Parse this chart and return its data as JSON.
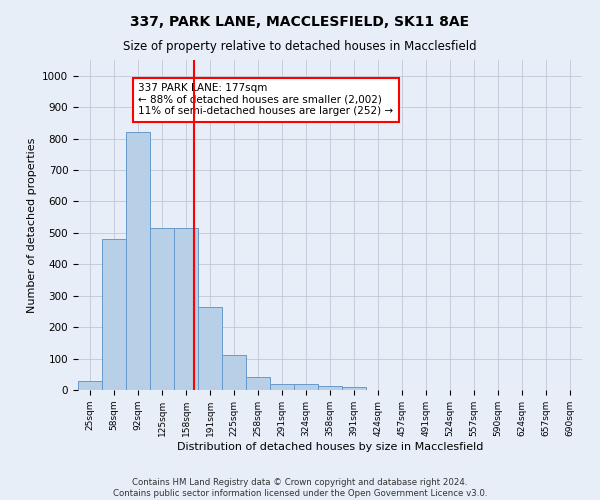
{
  "title": "337, PARK LANE, MACCLESFIELD, SK11 8AE",
  "subtitle": "Size of property relative to detached houses in Macclesfield",
  "xlabel": "Distribution of detached houses by size in Macclesfield",
  "ylabel": "Number of detached properties",
  "footnote1": "Contains HM Land Registry data © Crown copyright and database right 2024.",
  "footnote2": "Contains public sector information licensed under the Open Government Licence v3.0.",
  "bin_labels": [
    "25sqm",
    "58sqm",
    "92sqm",
    "125sqm",
    "158sqm",
    "191sqm",
    "225sqm",
    "258sqm",
    "291sqm",
    "324sqm",
    "358sqm",
    "391sqm",
    "424sqm",
    "457sqm",
    "491sqm",
    "524sqm",
    "557sqm",
    "590sqm",
    "624sqm",
    "657sqm",
    "690sqm"
  ],
  "bar_heights": [
    30,
    480,
    820,
    515,
    515,
    265,
    110,
    40,
    20,
    20,
    12,
    10,
    0,
    0,
    0,
    0,
    0,
    0,
    0,
    0,
    0
  ],
  "bar_color": "#b8cfe8",
  "bar_edgecolor": "#6699cc",
  "redline_x": 4.85,
  "annotation_text": "337 PARK LANE: 177sqm\n← 88% of detached houses are smaller (2,002)\n11% of semi-detached houses are larger (252) →",
  "annotation_box_color": "white",
  "annotation_box_edgecolor": "red",
  "redline_color": "red",
  "ylim": [
    0,
    1050
  ],
  "yticks": [
    0,
    100,
    200,
    300,
    400,
    500,
    600,
    700,
    800,
    900,
    1000
  ],
  "background_color": "#e8eef8",
  "axes_background": "#e8eef8",
  "grid_color": "#c0c8d8"
}
